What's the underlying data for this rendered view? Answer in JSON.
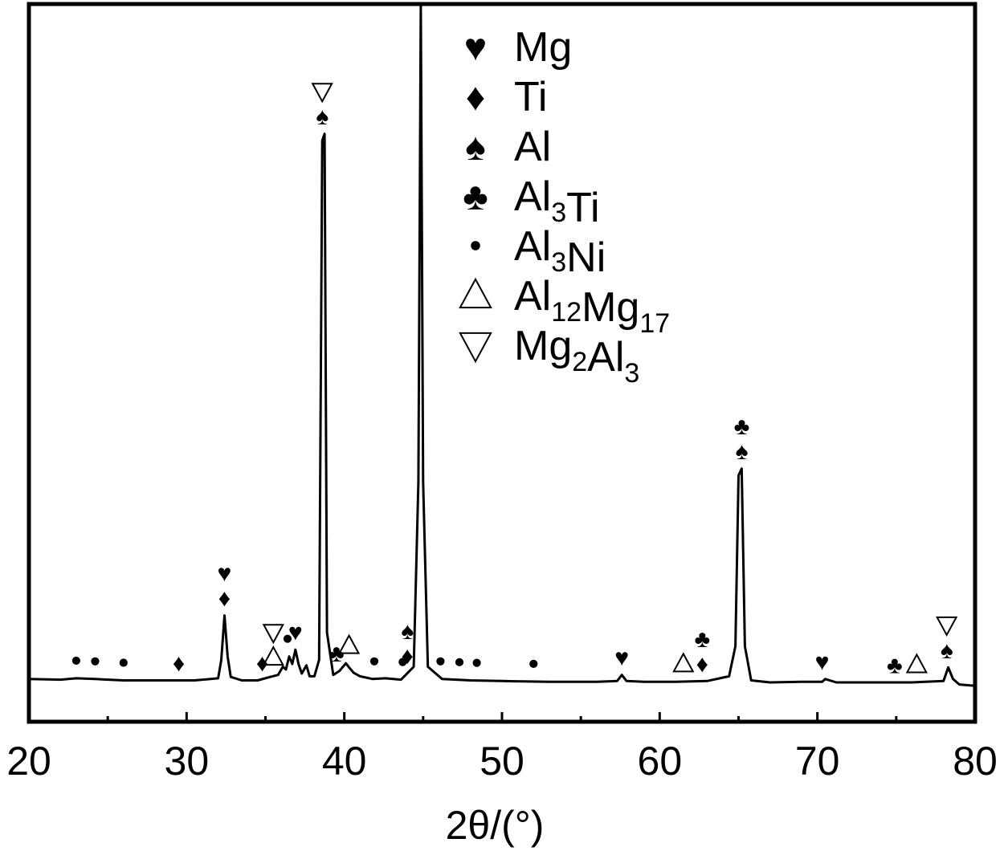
{
  "chart_data": {
    "type": "line",
    "xlabel": "2θ/(°)",
    "xlim": [
      20,
      80
    ],
    "x_ticks": [
      "20",
      "30",
      "40",
      "50",
      "60",
      "70",
      "80"
    ],
    "y_ticks": [],
    "grid": false,
    "legend_position": "top-right",
    "legend": [
      {
        "marker": "heart",
        "label": "Mg"
      },
      {
        "marker": "diamond",
        "label": "Ti"
      },
      {
        "marker": "spade",
        "label": "Al"
      },
      {
        "marker": "club",
        "label": "Al3Ti"
      },
      {
        "marker": "dot",
        "label": "Al3Ni"
      },
      {
        "marker": "triangle-up",
        "label": "Al12Mg17"
      },
      {
        "marker": "triangle-down",
        "label": "Mg2Al3"
      }
    ],
    "series": [
      {
        "x": [
          20.0,
          22.0,
          23.0,
          24.2,
          26.0,
          29.5,
          30.5,
          32.0,
          32.2,
          32.4,
          32.6,
          32.8,
          33.5,
          34.5,
          35.3,
          35.8,
          36.1,
          36.3,
          36.5,
          36.7,
          36.9,
          37.1,
          37.3,
          37.6,
          37.8,
          38.1,
          38.4,
          38.6,
          38.75,
          38.9,
          39.3,
          39.7,
          40.1,
          40.3,
          40.6,
          41.0,
          41.8,
          42.6,
          43.6,
          44.4,
          44.7,
          44.85,
          45.0,
          45.3,
          46.2,
          48.0,
          50.0,
          53.0,
          56.0,
          57.3,
          57.6,
          57.9,
          59.0,
          61.0,
          63.0,
          64.4,
          64.8,
          65.0,
          65.2,
          65.4,
          65.8,
          67.0,
          69.0,
          70.3,
          70.5,
          71.2,
          74.0,
          76.0,
          78.0,
          78.3,
          78.6,
          79.0,
          80.0
        ],
        "y": [
          1.2,
          1.1,
          1.3,
          1.2,
          1.0,
          1.0,
          1.0,
          1.3,
          4.0,
          10.5,
          4.5,
          1.5,
          1.0,
          1.0,
          1.5,
          1.8,
          3.0,
          2.6,
          4.5,
          3.4,
          5.5,
          3.4,
          2.0,
          3.2,
          1.6,
          1.6,
          4.0,
          80.0,
          81.0,
          8.0,
          1.8,
          2.4,
          3.5,
          2.9,
          2.1,
          1.6,
          1.2,
          1.3,
          1.1,
          3.0,
          30.0,
          100.0,
          30.0,
          3.0,
          1.2,
          1.0,
          0.9,
          0.8,
          0.8,
          0.9,
          1.8,
          0.9,
          0.8,
          0.8,
          0.9,
          1.6,
          6.0,
          31.0,
          32.0,
          6.0,
          1.0,
          0.7,
          0.8,
          0.8,
          1.2,
          0.7,
          0.7,
          0.7,
          0.9,
          2.9,
          1.2,
          0.4,
          0.2
        ]
      }
    ],
    "peak_annotations": [
      {
        "x": 23.0,
        "symbols": [
          "dot"
        ]
      },
      {
        "x": 24.2,
        "symbols": [
          "dot"
        ]
      },
      {
        "x": 26.0,
        "symbols": [
          "dot"
        ]
      },
      {
        "x": 29.5,
        "symbols": [
          "diamond"
        ]
      },
      {
        "x": 32.4,
        "symbols": [
          "diamond",
          "heart"
        ]
      },
      {
        "x": 34.8,
        "symbols": [
          "diamond"
        ]
      },
      {
        "x": 35.5,
        "symbols": [
          "triangle-up"
        ]
      },
      {
        "x": 35.5,
        "symbols": [
          "triangle-down"
        ]
      },
      {
        "x": 36.4,
        "symbols": [
          "dot"
        ]
      },
      {
        "x": 36.9,
        "symbols": [
          "heart"
        ]
      },
      {
        "x": 38.6,
        "symbols": [
          "spade",
          "triangle-down"
        ]
      },
      {
        "x": 39.5,
        "symbols": [
          "club"
        ]
      },
      {
        "x": 40.3,
        "symbols": [
          "triangle-up"
        ]
      },
      {
        "x": 41.9,
        "symbols": [
          "dot"
        ]
      },
      {
        "x": 43.7,
        "symbols": [
          "dot"
        ]
      },
      {
        "x": 44.0,
        "symbols": [
          "diamond",
          "spade"
        ]
      },
      {
        "x": 46.1,
        "symbols": [
          "dot"
        ]
      },
      {
        "x": 47.3,
        "symbols": [
          "dot"
        ]
      },
      {
        "x": 48.4,
        "symbols": [
          "dot"
        ]
      },
      {
        "x": 52.0,
        "symbols": [
          "dot"
        ]
      },
      {
        "x": 57.6,
        "symbols": [
          "heart"
        ]
      },
      {
        "x": 61.5,
        "symbols": [
          "triangle-up"
        ]
      },
      {
        "x": 62.7,
        "symbols": [
          "diamond",
          "club"
        ]
      },
      {
        "x": 65.2,
        "symbols": [
          "spade",
          "club"
        ]
      },
      {
        "x": 70.3,
        "symbols": [
          "heart"
        ]
      },
      {
        "x": 74.9,
        "symbols": [
          "club"
        ]
      },
      {
        "x": 76.3,
        "symbols": [
          "triangle-up"
        ]
      },
      {
        "x": 78.2,
        "symbols": [
          "spade",
          "triangle-down"
        ]
      }
    ]
  }
}
